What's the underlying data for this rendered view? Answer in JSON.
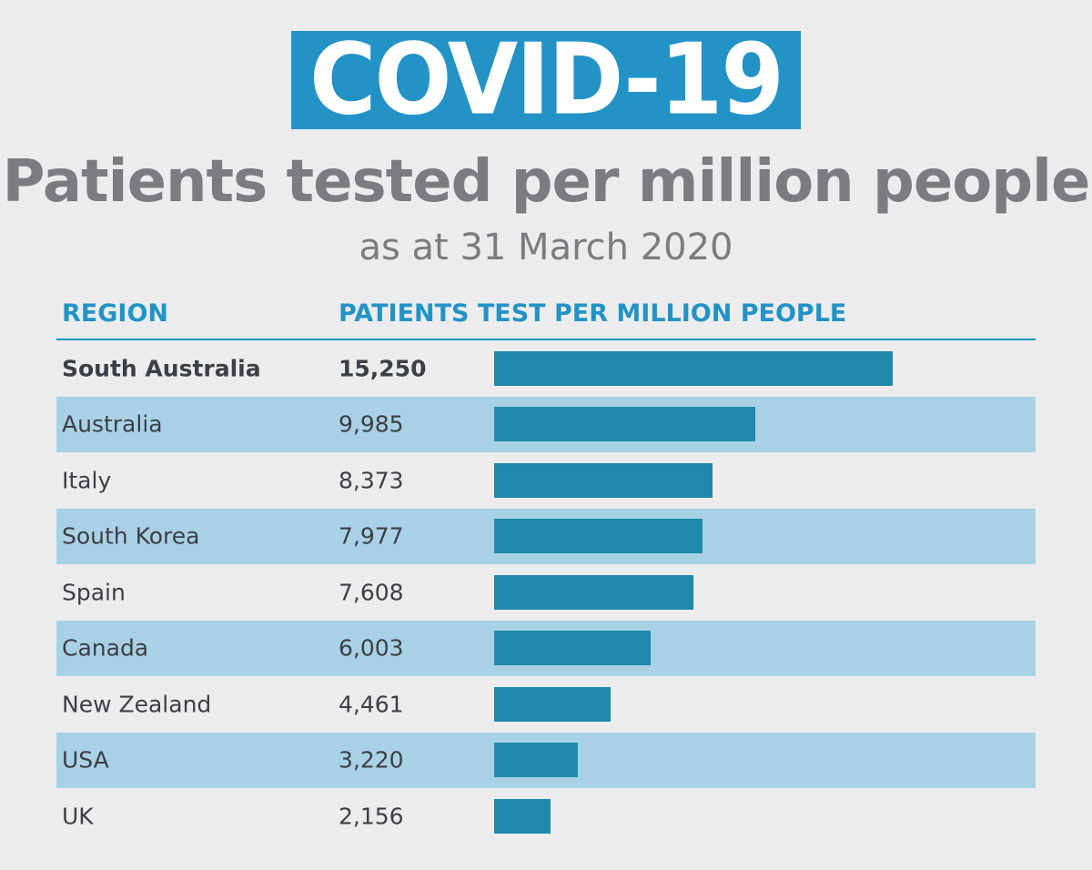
{
  "banner": {
    "text": "COVID-19"
  },
  "header": {
    "title": "Patients tested per million people",
    "subtitle": "as at 31 March 2020"
  },
  "colors": {
    "banner_bg": "#2393c6",
    "accent": "#2393c6",
    "bar": "#1f88ab",
    "row_shade": "#a8d1e6",
    "background": "#ececec",
    "title_text": "#7b7c80",
    "body_text": "#3c3f44"
  },
  "chart_data": {
    "type": "bar",
    "orientation": "horizontal",
    "title": "Patients tested per million people",
    "subtitle": "as at 31 March 2020",
    "columns": [
      "REGION",
      "PATIENTS TEST PER MILLION PEOPLE"
    ],
    "categories": [
      "South Australia",
      "Australia",
      "Italy",
      "South Korea",
      "Spain",
      "Canada",
      "New Zealand",
      "USA",
      "UK"
    ],
    "values": [
      15250,
      9985,
      8373,
      7977,
      7608,
      6003,
      4461,
      3220,
      2156
    ],
    "value_labels": [
      "15,250",
      "9,985",
      "8,373",
      "7,977",
      "7,608",
      "6,003",
      "4,461",
      "3,220",
      "2,156"
    ],
    "xlim": [
      0,
      15250
    ],
    "highlight_category": "South Australia",
    "grid": false,
    "legend": "none"
  }
}
